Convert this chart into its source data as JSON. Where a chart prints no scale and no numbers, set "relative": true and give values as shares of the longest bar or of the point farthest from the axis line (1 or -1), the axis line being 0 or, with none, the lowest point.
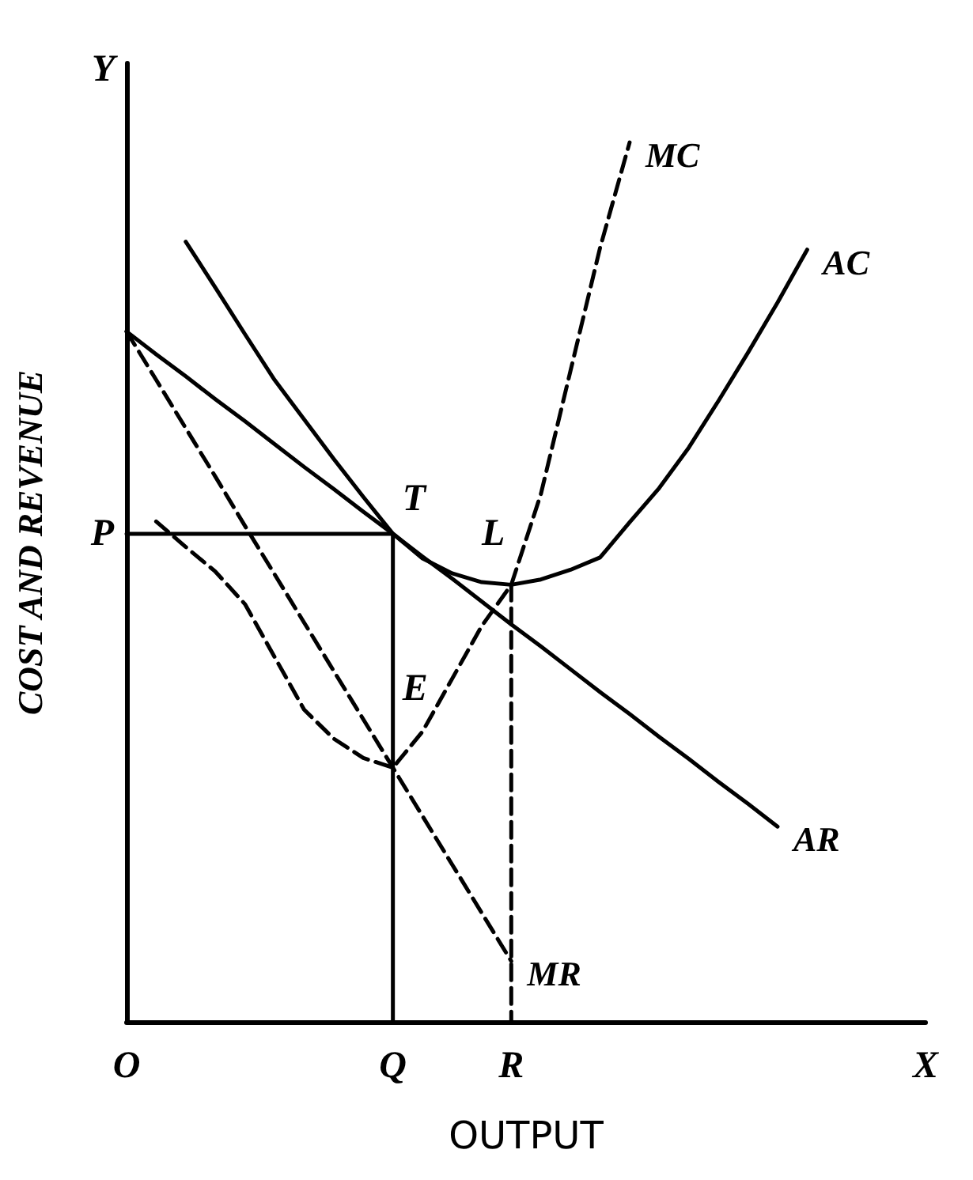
{
  "chart_data": {
    "type": "line",
    "relative": true,
    "xlabel": "OUTPUT",
    "ylabel": "COST AND REVENUE",
    "tick_labels": "x",
    "marker": "none",
    "categories": [
      "O",
      null,
      null,
      null,
      null,
      null,
      null,
      null,
      null,
      "Q",
      null,
      null,
      null,
      "R",
      null,
      null,
      null,
      null,
      null,
      null,
      null,
      null,
      null,
      null,
      null,
      null,
      null,
      "X"
    ],
    "series": [
      {
        "name": "AR",
        "color": "#000000",
        "line_style": "solid",
        "values": [
          0.785,
          0.759,
          0.734,
          0.708,
          0.683,
          0.657,
          0.631,
          0.606,
          0.58,
          0.555,
          0.529,
          0.504,
          0.478,
          0.452,
          0.427,
          0.401,
          0.375,
          0.35,
          0.324,
          0.299,
          0.273,
          0.248,
          0.222,
          null,
          null,
          null,
          null,
          null
        ]
      },
      {
        "name": "MR",
        "color": "#000000",
        "line_style": "dashed",
        "values": [
          0.785,
          0.73,
          0.675,
          0.62,
          0.564,
          0.509,
          0.454,
          0.399,
          0.344,
          0.289,
          0.234,
          0.179,
          0.124,
          0.069,
          null,
          null,
          null,
          null,
          null,
          null,
          null,
          null,
          null,
          null,
          null,
          null,
          null,
          null
        ]
      },
      {
        "name": "AC",
        "color": "#000000",
        "line_style": "solid",
        "values": [
          null,
          null,
          0.887,
          0.835,
          0.782,
          0.73,
          0.685,
          0.64,
          0.597,
          0.555,
          0.527,
          0.51,
          0.5,
          0.497,
          0.503,
          0.514,
          0.528,
          0.568,
          0.607,
          0.653,
          0.706,
          0.761,
          0.818,
          0.878,
          null,
          null,
          null,
          null
        ]
      },
      {
        "name": "MC",
        "color": "#000000",
        "line_style": "dashed",
        "values": [
          null,
          0.569,
          0.54,
          0.512,
          0.475,
          0.415,
          0.355,
          0.322,
          0.3,
          0.289,
          0.33,
          0.39,
          0.45,
          0.497,
          0.6,
          0.74,
          0.88,
          1.0,
          null,
          null,
          null,
          null,
          null,
          null,
          null,
          null,
          null,
          null
        ]
      },
      {
        "color": "#000000",
        "line_style": "solid",
        "x": [
          "O",
          "Q"
        ],
        "values": [
          0.555,
          0.555
        ]
      },
      {
        "color": "#000000",
        "line_style": "solid",
        "x": [
          "Q",
          "Q"
        ],
        "values": [
          0.555,
          0
        ]
      },
      {
        "color": "#000000",
        "line_style": "dashed",
        "x": [
          "R",
          "R"
        ],
        "values": [
          0.497,
          0
        ]
      }
    ],
    "annotations": [
      "Y",
      {
        "text": "P",
        "x": "O",
        "y": 0.555
      },
      {
        "text": "T",
        "x": "Q",
        "y": 0.555
      },
      {
        "text": "L",
        "x": "R",
        "y": 0.497
      },
      {
        "text": "E",
        "x": "Q",
        "y": 0.289
      }
    ]
  }
}
